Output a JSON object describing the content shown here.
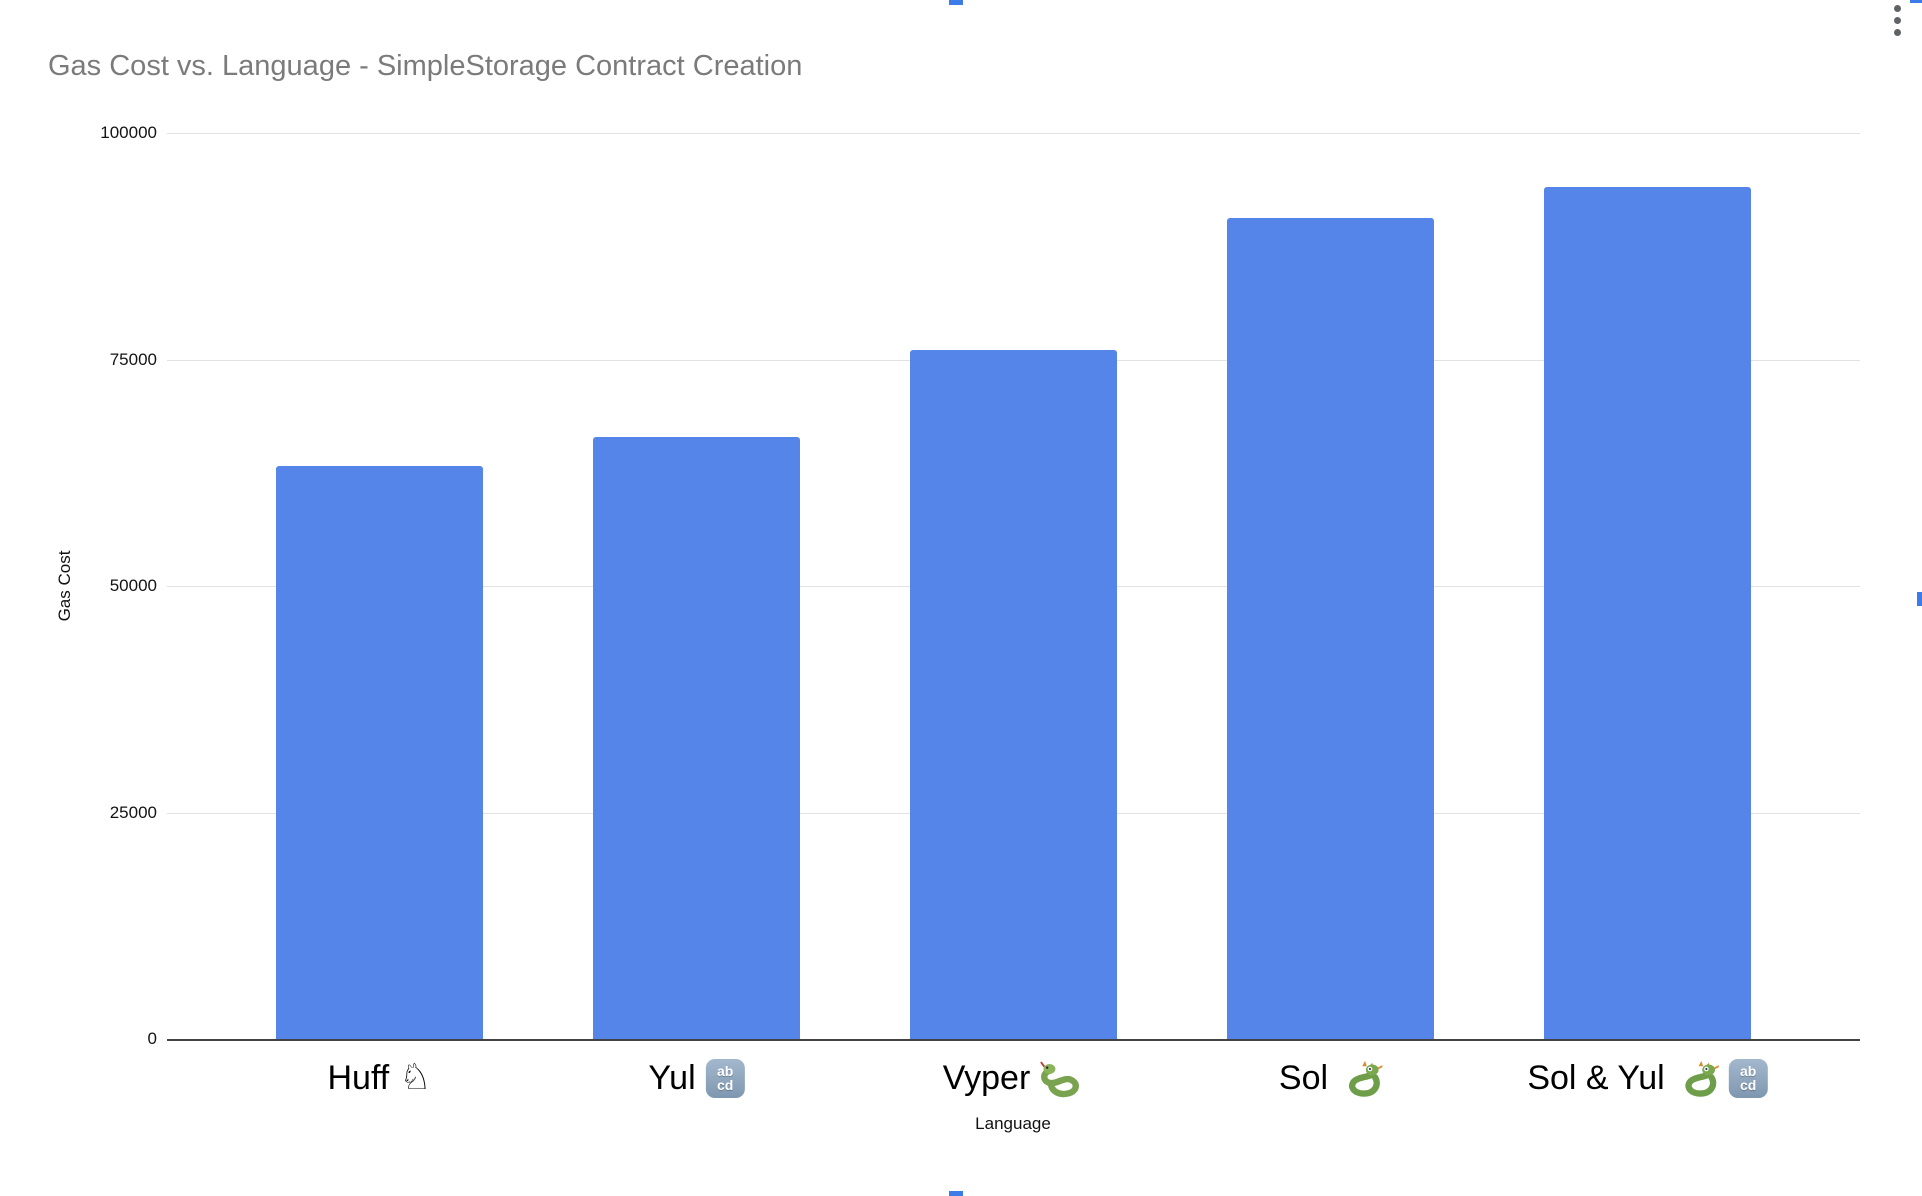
{
  "chart_data": {
    "type": "bar",
    "title": "Gas Cost vs. Language - SimpleStorage Contract Creation",
    "xlabel": "Language",
    "ylabel": "Gas Cost",
    "categories": [
      "Huff ♘",
      "Yul 🔡",
      "Vyper 🐍",
      "Sol 🐉",
      "Sol & Yul 🐉🔡"
    ],
    "category_labels": [
      {
        "text": "Huff",
        "icons": [
          "chess-knight-icon"
        ]
      },
      {
        "text": "Yul",
        "icons": [
          "abcd-input-icon"
        ]
      },
      {
        "text": "Vyper",
        "icons": [
          "snake-icon"
        ]
      },
      {
        "text": "Sol",
        "icons": [
          "dragon-icon"
        ]
      },
      {
        "text": "Sol & Yul",
        "icons": [
          "dragon-icon",
          "abcd-input-icon"
        ]
      }
    ],
    "values": [
      63300,
      66400,
      76100,
      90600,
      94000
    ],
    "ylim": [
      0,
      100000
    ],
    "yticks": [
      "0",
      "25000",
      "50000",
      "75000",
      "100000"
    ],
    "grid": true,
    "legend": "none",
    "bar_color": "#5585e8"
  },
  "chrome": {
    "menu_icon": "kebab-menu",
    "selection_handle_color": "#3d7ce8",
    "gridline_color": "#e2e2e2",
    "baseline_color": "#424242",
    "title_color": "#7b7b7b"
  }
}
